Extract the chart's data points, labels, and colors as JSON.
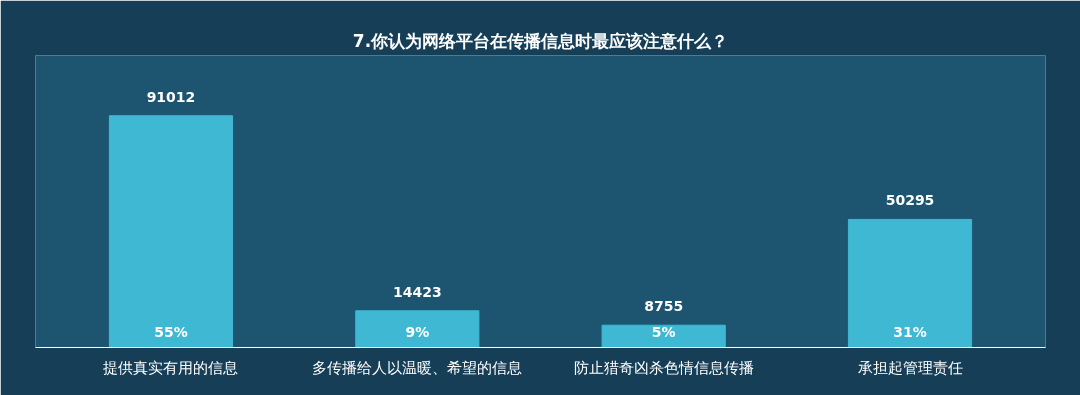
{
  "chart_data": {
    "type": "bar",
    "title": "7.你认为网络平台在传播信息时最应该注意什么？",
    "categories": [
      "提供真实有用的信息",
      "多传播给人以温暖、希望的信息",
      "防止猎奇凶杀色情信息传播",
      "承担起管理责任"
    ],
    "values": [
      91012,
      14423,
      8755,
      50295
    ],
    "color": "#3fb8d4",
    "data_labels": true,
    "annotations": [
      {
        "text": "55%",
        "x": "提供真实有用的信息",
        "y": 0
      },
      {
        "text": "9%",
        "x": "多传播给人以温暖、希望的信息",
        "y": 0
      },
      {
        "text": "5%",
        "x": "防止猎奇凶杀色情信息传播",
        "y": 0
      },
      {
        "text": "31%",
        "x": "承担起管理责任",
        "y": 0
      }
    ],
    "grid": false
  }
}
